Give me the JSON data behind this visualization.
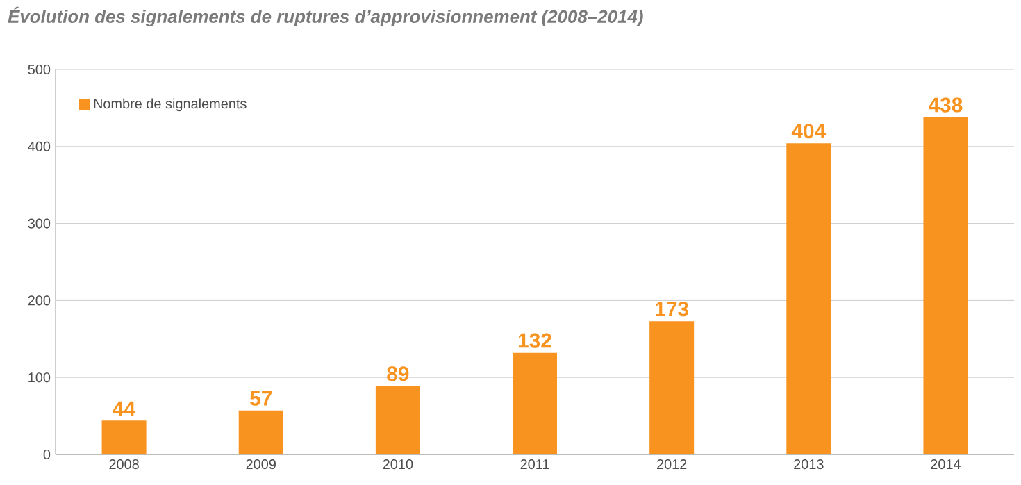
{
  "chart_data": {
    "type": "bar",
    "title": "Évolution des signalements de ruptures d’approvisionnement (2008–2014)",
    "categories": [
      "2008",
      "2009",
      "2010",
      "2011",
      "2012",
      "2013",
      "2014"
    ],
    "series": [
      {
        "name": "Nombre de signalements",
        "color": "#f7931e",
        "values": [
          44,
          57,
          89,
          132,
          173,
          404,
          438
        ]
      }
    ],
    "ylim": [
      0,
      500
    ],
    "yticks": [
      0,
      100,
      200,
      300,
      400,
      500
    ],
    "grid": "y",
    "legend": "top left",
    "data_labels": true
  }
}
